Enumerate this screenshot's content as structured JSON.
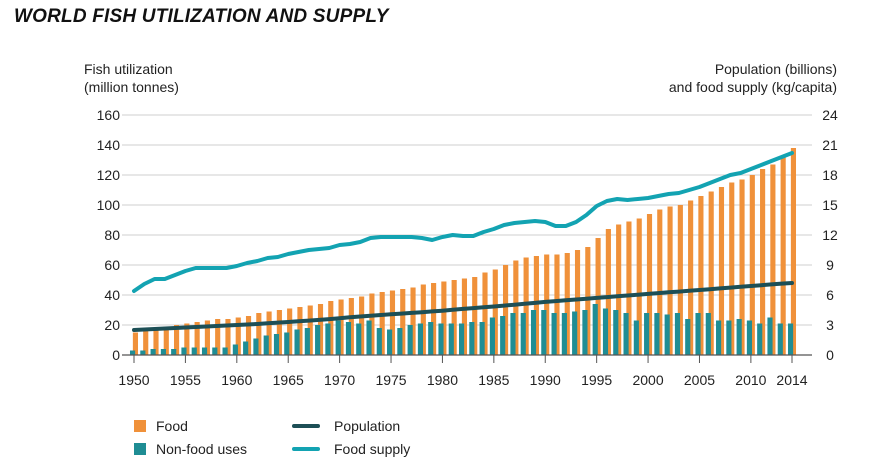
{
  "title": "WORLD FISH UTILIZATION AND SUPPLY",
  "left_axis_title": [
    "Fish utilization",
    "(million tonnes)"
  ],
  "right_axis_title": [
    "Population (billions)",
    "and food supply (kg/capita)"
  ],
  "colors": {
    "food": "#f0913a",
    "nonfood": "#1f8d94",
    "population": "#1d4f56",
    "food_supply": "#13a3b2"
  },
  "legend": {
    "food": "Food",
    "nonfood": "Non-food uses",
    "population": "Population",
    "food_supply": "Food supply"
  },
  "chart_data": {
    "type": "bar",
    "title": "WORLD FISH UTILIZATION AND SUPPLY",
    "xlabel": "",
    "ylabel": "Fish utilization (million tonnes)",
    "y2label": "Population (billions) and food supply (kg/capita)",
    "ylim": [
      0,
      160
    ],
    "y2lim": [
      0,
      24
    ],
    "yticks": [
      0,
      20,
      40,
      60,
      80,
      100,
      120,
      140,
      160
    ],
    "y2ticks": [
      0,
      3,
      6,
      9,
      12,
      15,
      18,
      21,
      24
    ],
    "xticks": [
      "1950",
      "1955",
      "1960",
      "1965",
      "1970",
      "1975",
      "1980",
      "1985",
      "1990",
      "1995",
      "2000",
      "2005",
      "2010",
      "2014"
    ],
    "x": [
      1950,
      1951,
      1952,
      1953,
      1954,
      1955,
      1956,
      1957,
      1958,
      1959,
      1960,
      1961,
      1962,
      1963,
      1964,
      1965,
      1966,
      1967,
      1968,
      1969,
      1970,
      1971,
      1972,
      1973,
      1974,
      1975,
      1976,
      1977,
      1978,
      1979,
      1980,
      1981,
      1982,
      1983,
      1984,
      1985,
      1986,
      1987,
      1988,
      1989,
      1990,
      1991,
      1992,
      1993,
      1994,
      1995,
      1996,
      1997,
      1998,
      1999,
      2000,
      2001,
      2002,
      2003,
      2004,
      2005,
      2006,
      2007,
      2008,
      2009,
      2010,
      2011,
      2012,
      2013,
      2014
    ],
    "series": [
      {
        "name": "Food",
        "kind": "bar",
        "axis": "left",
        "values": [
          15,
          17,
          18,
          19,
          20,
          21,
          22,
          23,
          24,
          24,
          25,
          26,
          28,
          29,
          30,
          31,
          32,
          33,
          34,
          36,
          37,
          38,
          39,
          41,
          42,
          43,
          44,
          45,
          47,
          48,
          49,
          50,
          51,
          52,
          55,
          57,
          60,
          63,
          65,
          66,
          67,
          67,
          68,
          70,
          72,
          78,
          84,
          87,
          89,
          91,
          94,
          97,
          99,
          100,
          103,
          106,
          109,
          112,
          115,
          117,
          120,
          124,
          127,
          133,
          138
        ]
      },
      {
        "name": "Non-food uses",
        "kind": "bar",
        "axis": "left",
        "values": [
          3,
          3,
          4,
          4,
          4,
          5,
          5,
          5,
          5,
          5,
          7,
          9,
          11,
          13,
          14,
          15,
          17,
          18,
          20,
          21,
          23,
          22,
          21,
          23,
          18,
          17,
          18,
          20,
          21,
          22,
          21,
          21,
          21,
          22,
          22,
          25,
          26,
          28,
          28,
          30,
          30,
          28,
          28,
          29,
          30,
          34,
          31,
          30,
          28,
          23,
          28,
          28,
          27,
          28,
          24,
          28,
          28,
          23,
          23,
          24,
          23,
          21,
          25,
          21,
          21
        ]
      },
      {
        "name": "Population",
        "kind": "line",
        "axis": "right",
        "values": [
          2.5,
          2.55,
          2.6,
          2.65,
          2.7,
          2.75,
          2.8,
          2.85,
          2.9,
          2.95,
          3.0,
          3.05,
          3.1,
          3.17,
          3.24,
          3.3,
          3.37,
          3.44,
          3.51,
          3.59,
          3.68,
          3.77,
          3.85,
          3.92,
          4.0,
          4.07,
          4.14,
          4.21,
          4.28,
          4.36,
          4.43,
          4.52,
          4.61,
          4.69,
          4.77,
          4.85,
          4.94,
          5.03,
          5.12,
          5.21,
          5.31,
          5.39,
          5.47,
          5.55,
          5.63,
          5.71,
          5.79,
          5.87,
          5.95,
          6.03,
          6.11,
          6.19,
          6.27,
          6.34,
          6.42,
          6.5,
          6.58,
          6.66,
          6.74,
          6.82,
          6.9,
          6.98,
          7.06,
          7.14,
          7.2
        ]
      },
      {
        "name": "Food supply",
        "kind": "line",
        "axis": "right",
        "values": [
          6.4,
          7.1,
          7.6,
          7.6,
          8.0,
          8.4,
          8.7,
          8.7,
          8.7,
          8.7,
          8.9,
          9.2,
          9.4,
          9.7,
          9.8,
          10.1,
          10.3,
          10.5,
          10.6,
          10.7,
          11.0,
          11.1,
          11.3,
          11.7,
          11.8,
          11.8,
          11.8,
          11.8,
          11.7,
          11.5,
          11.8,
          12.0,
          11.9,
          11.9,
          12.3,
          12.6,
          13.0,
          13.2,
          13.3,
          13.4,
          13.3,
          12.9,
          12.9,
          13.3,
          14.0,
          14.9,
          15.4,
          15.6,
          15.5,
          15.6,
          15.7,
          15.9,
          16.1,
          16.2,
          16.5,
          16.8,
          17.2,
          17.6,
          18.0,
          18.2,
          18.6,
          19.0,
          19.4,
          19.8,
          20.2
        ]
      }
    ],
    "grid": true,
    "legend_position": "bottom-left"
  }
}
